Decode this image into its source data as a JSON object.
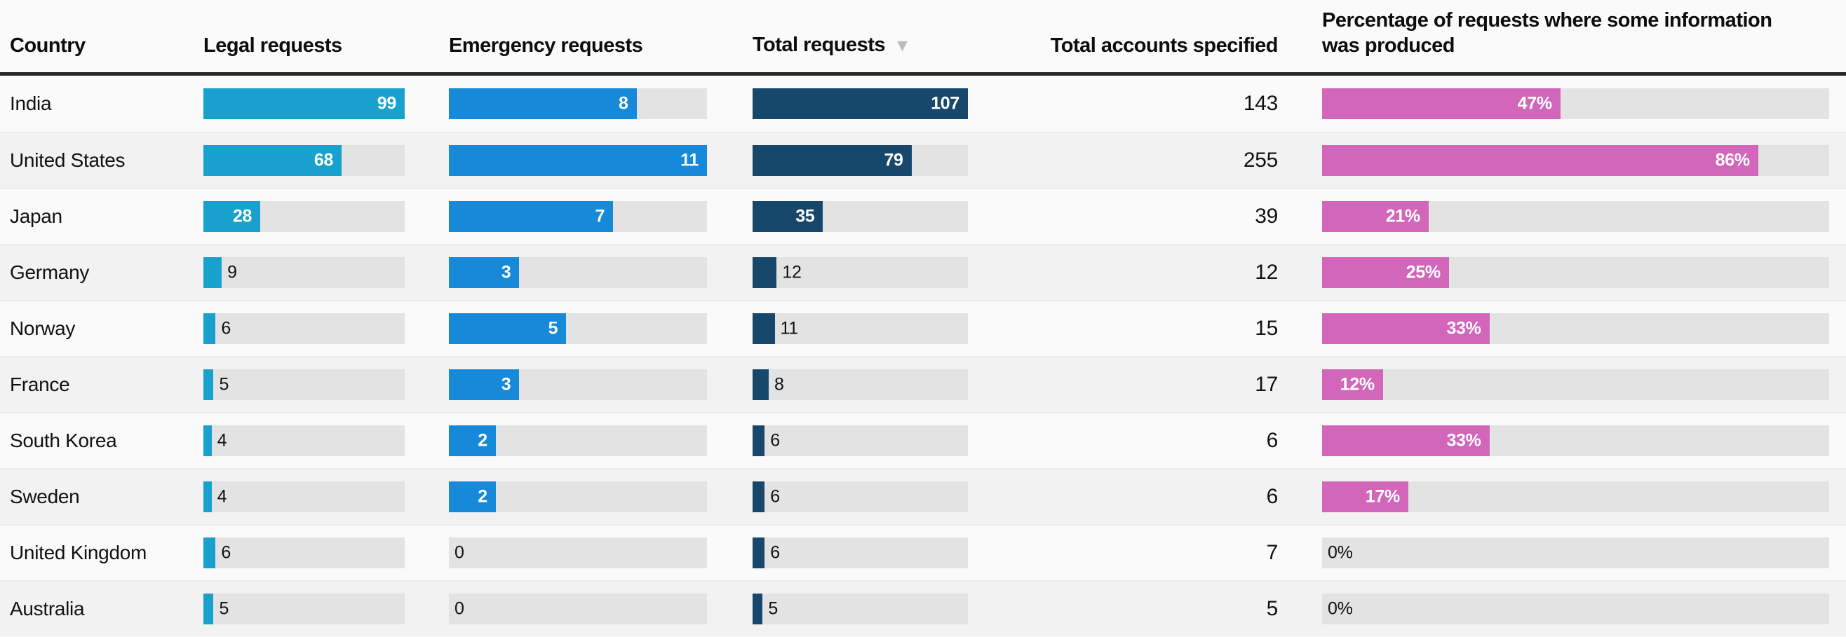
{
  "header": {
    "country": "Country",
    "legal": "Legal requests",
    "emergency": "Emergency requests",
    "total": "Total requests",
    "accounts": "Total accounts specified",
    "percent": "Percentage of requests where some information\nwas produced",
    "sort_indicator": "▼",
    "sorted_column": "Total requests",
    "sort_direction": "descending"
  },
  "colors": {
    "legal_bar": "#18a1cd",
    "emergency_bar": "#1789d9",
    "total_bar": "#17476b",
    "percent_bar": "#d166ba",
    "bar_track": "#e3e3e3",
    "row_alt_bg": "#f2f2f2",
    "page_bg": "#fafafa",
    "header_rule": "#282828"
  },
  "chart_data": {
    "type": "table",
    "columns": [
      "Country",
      "Legal requests",
      "Emergency requests",
      "Total requests",
      "Total accounts specified",
      "Percentage of requests where some information was produced"
    ],
    "bar_columns": [
      {
        "key": "legal",
        "max": 99,
        "color_key": "legal_bar"
      },
      {
        "key": "emergency",
        "max": 11,
        "color_key": "emergency_bar"
      },
      {
        "key": "total",
        "max": 107,
        "color_key": "total_bar"
      },
      {
        "key": "percent",
        "max": 100,
        "color_key": "percent_bar",
        "label_key": "percent_label"
      }
    ],
    "rows": [
      {
        "country": "India",
        "legal": 99,
        "emergency": 8,
        "total": 107,
        "accounts": 143,
        "percent": 47,
        "percent_label": "47%"
      },
      {
        "country": "United States",
        "legal": 68,
        "emergency": 11,
        "total": 79,
        "accounts": 255,
        "percent": 86,
        "percent_label": "86%"
      },
      {
        "country": "Japan",
        "legal": 28,
        "emergency": 7,
        "total": 35,
        "accounts": 39,
        "percent": 21,
        "percent_label": "21%"
      },
      {
        "country": "Germany",
        "legal": 9,
        "emergency": 3,
        "total": 12,
        "accounts": 12,
        "percent": 25,
        "percent_label": "25%"
      },
      {
        "country": "Norway",
        "legal": 6,
        "emergency": 5,
        "total": 11,
        "accounts": 15,
        "percent": 33,
        "percent_label": "33%"
      },
      {
        "country": "France",
        "legal": 5,
        "emergency": 3,
        "total": 8,
        "accounts": 17,
        "percent": 12,
        "percent_label": "12%"
      },
      {
        "country": "South Korea",
        "legal": 4,
        "emergency": 2,
        "total": 6,
        "accounts": 6,
        "percent": 33,
        "percent_label": "33%"
      },
      {
        "country": "Sweden",
        "legal": 4,
        "emergency": 2,
        "total": 6,
        "accounts": 6,
        "percent": 17,
        "percent_label": "17%"
      },
      {
        "country": "United Kingdom",
        "legal": 6,
        "emergency": 0,
        "total": 6,
        "accounts": 7,
        "percent": 0,
        "percent_label": "0%"
      },
      {
        "country": "Australia",
        "legal": 5,
        "emergency": 0,
        "total": 5,
        "accounts": 5,
        "percent": 0,
        "percent_label": "0%"
      }
    ]
  }
}
